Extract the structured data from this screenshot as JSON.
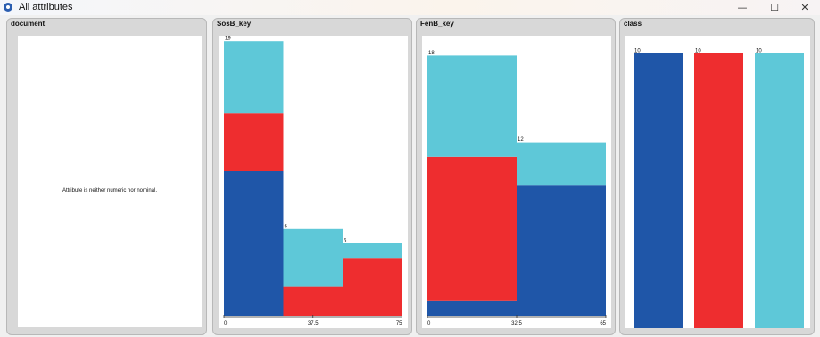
{
  "window": {
    "title": "All attributes",
    "minimize": "—",
    "maximize": "☐",
    "close": "✕"
  },
  "colors": {
    "blue": "#1f56a8",
    "red": "#ee2d2f",
    "cyan": "#5ec8d8"
  },
  "panels": [
    {
      "title": "document",
      "message": "Attribute is neither numeric nor nominal."
    },
    {
      "title": "SosB_key"
    },
    {
      "title": "FenB_key"
    },
    {
      "title": "class"
    }
  ],
  "chart_data": [
    {
      "type": "bar",
      "title": "SosB_key",
      "stacked": true,
      "x_ticks": [
        "0",
        "37.5",
        "75"
      ],
      "bins": [
        {
          "total": 19,
          "segments": [
            {
              "color": "blue",
              "value": 10
            },
            {
              "color": "red",
              "value": 4
            },
            {
              "color": "cyan",
              "value": 5
            }
          ]
        },
        {
          "total": 6,
          "segments": [
            {
              "color": "blue",
              "value": 0
            },
            {
              "color": "red",
              "value": 2
            },
            {
              "color": "cyan",
              "value": 4
            }
          ]
        },
        {
          "total": 5,
          "segments": [
            {
              "color": "blue",
              "value": 0
            },
            {
              "color": "red",
              "value": 4
            },
            {
              "color": "cyan",
              "value": 1
            }
          ]
        }
      ]
    },
    {
      "type": "bar",
      "title": "FenB_key",
      "stacked": true,
      "x_ticks": [
        "0",
        "32.5",
        "65"
      ],
      "bins": [
        {
          "total": 18,
          "segments": [
            {
              "color": "blue",
              "value": 1
            },
            {
              "color": "red",
              "value": 10
            },
            {
              "color": "cyan",
              "value": 7
            }
          ]
        },
        {
          "total": 12,
          "segments": [
            {
              "color": "blue",
              "value": 9
            },
            {
              "color": "red",
              "value": 0
            },
            {
              "color": "cyan",
              "value": 3
            }
          ]
        }
      ]
    },
    {
      "type": "bar",
      "title": "class",
      "stacked": false,
      "x_ticks": [],
      "bins": [
        {
          "total": 10,
          "segments": [
            {
              "color": "blue",
              "value": 10
            }
          ]
        },
        {
          "total": 10,
          "segments": [
            {
              "color": "red",
              "value": 10
            }
          ]
        },
        {
          "total": 10,
          "segments": [
            {
              "color": "cyan",
              "value": 10
            }
          ]
        }
      ]
    }
  ]
}
